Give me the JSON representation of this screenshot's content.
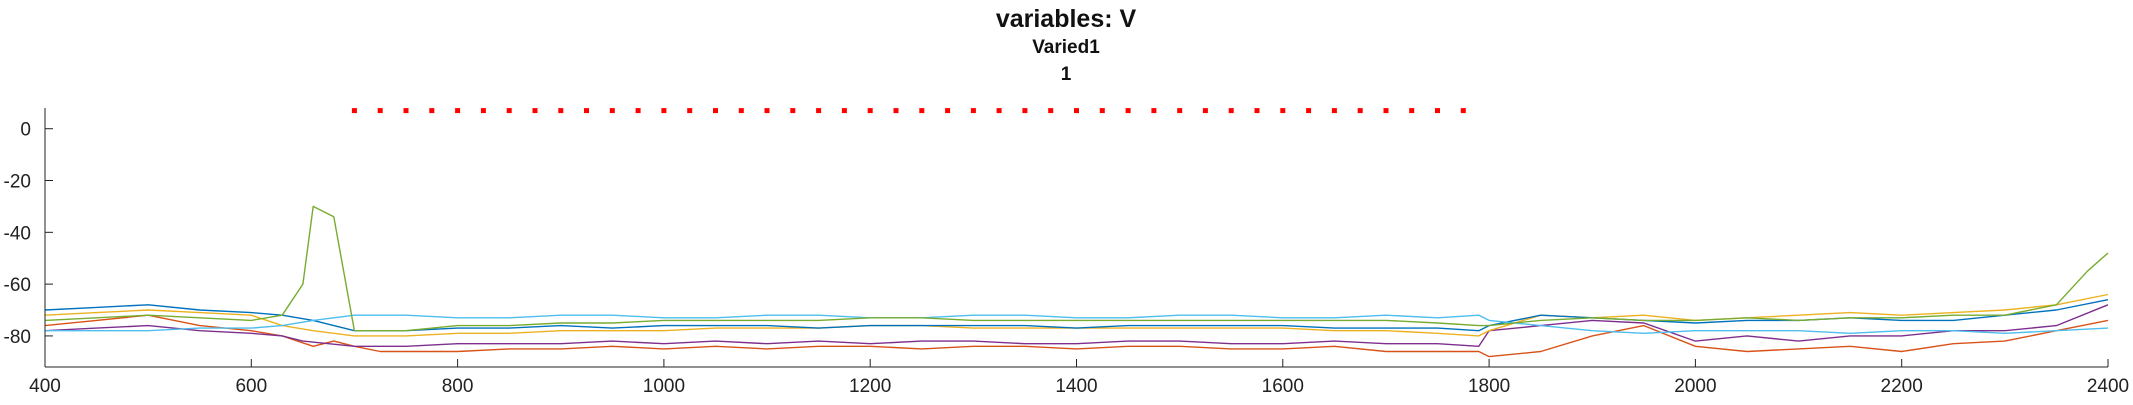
{
  "chart_data": {
    "type": "line",
    "title": "variables: V",
    "subtitle": "Varied1",
    "subtitle2": "1",
    "xlim": [
      400,
      2400
    ],
    "ylim": [
      -92,
      8
    ],
    "x_ticks": [
      400,
      600,
      800,
      1000,
      1200,
      1400,
      1600,
      1800,
      2000,
      2200,
      2400
    ],
    "y_ticks": [
      0,
      -20,
      -40,
      -60,
      -80
    ],
    "grid": false,
    "stimulus_markers": {
      "color": "#ff0000",
      "y": 7,
      "x": [
        700,
        725,
        750,
        775,
        800,
        825,
        850,
        875,
        900,
        925,
        950,
        975,
        1000,
        1025,
        1050,
        1075,
        1100,
        1125,
        1150,
        1175,
        1200,
        1225,
        1250,
        1275,
        1300,
        1325,
        1350,
        1375,
        1400,
        1425,
        1450,
        1475,
        1500,
        1525,
        1550,
        1575,
        1600,
        1625,
        1650,
        1675,
        1700,
        1725,
        1750,
        1775
      ]
    },
    "series": [
      {
        "color": "#d95319",
        "x": [
          400,
          450,
          500,
          550,
          600,
          630,
          660,
          680,
          700,
          725,
          750,
          800,
          850,
          900,
          950,
          1000,
          1050,
          1100,
          1150,
          1200,
          1250,
          1300,
          1350,
          1400,
          1450,
          1500,
          1550,
          1600,
          1650,
          1700,
          1750,
          1790,
          1800,
          1850,
          1900,
          1950,
          2000,
          2050,
          2100,
          2150,
          2200,
          2250,
          2300,
          2350,
          2400
        ],
        "y": [
          -76,
          -74,
          -72,
          -76,
          -78,
          -80,
          -84,
          -82,
          -84,
          -86,
          -86,
          -86,
          -85,
          -85,
          -84,
          -85,
          -84,
          -85,
          -84,
          -84,
          -85,
          -84,
          -84,
          -85,
          -84,
          -84,
          -85,
          -85,
          -84,
          -86,
          -86,
          -86,
          -88,
          -86,
          -80,
          -76,
          -84,
          -86,
          -85,
          -84,
          -86,
          -83,
          -82,
          -78,
          -74
        ]
      },
      {
        "color": "#7e2f8e",
        "x": [
          400,
          450,
          500,
          550,
          600,
          630,
          650,
          700,
          750,
          800,
          850,
          900,
          950,
          1000,
          1050,
          1100,
          1150,
          1200,
          1250,
          1300,
          1350,
          1400,
          1450,
          1500,
          1550,
          1600,
          1650,
          1700,
          1750,
          1790,
          1800,
          1850,
          1900,
          1950,
          2000,
          2050,
          2100,
          2150,
          2200,
          2250,
          2300,
          2350,
          2400
        ],
        "y": [
          -78,
          -77,
          -76,
          -78,
          -79,
          -80,
          -82,
          -84,
          -84,
          -83,
          -83,
          -83,
          -82,
          -83,
          -82,
          -83,
          -82,
          -83,
          -82,
          -82,
          -83,
          -83,
          -82,
          -82,
          -83,
          -83,
          -82,
          -83,
          -83,
          -84,
          -78,
          -76,
          -74,
          -75,
          -82,
          -80,
          -82,
          -80,
          -80,
          -78,
          -78,
          -76,
          -68
        ]
      },
      {
        "color": "#edb120",
        "x": [
          400,
          450,
          500,
          550,
          600,
          630,
          660,
          700,
          750,
          800,
          850,
          900,
          950,
          1000,
          1050,
          1100,
          1150,
          1200,
          1250,
          1300,
          1350,
          1400,
          1450,
          1500,
          1550,
          1600,
          1650,
          1700,
          1750,
          1790,
          1800,
          1850,
          1900,
          1950,
          2000,
          2050,
          2100,
          2150,
          2200,
          2250,
          2300,
          2350,
          2400
        ],
        "y": [
          -72,
          -71,
          -70,
          -71,
          -72,
          -76,
          -78,
          -80,
          -80,
          -79,
          -79,
          -78,
          -78,
          -78,
          -77,
          -77,
          -77,
          -76,
          -76,
          -77,
          -77,
          -77,
          -77,
          -77,
          -77,
          -77,
          -78,
          -78,
          -79,
          -80,
          -78,
          -72,
          -73,
          -72,
          -74,
          -73,
          -72,
          -71,
          -72,
          -71,
          -70,
          -68,
          -64
        ]
      },
      {
        "color": "#0072bd",
        "x": [
          400,
          450,
          500,
          550,
          600,
          630,
          660,
          700,
          750,
          800,
          850,
          900,
          950,
          1000,
          1050,
          1100,
          1150,
          1200,
          1250,
          1300,
          1350,
          1400,
          1450,
          1500,
          1550,
          1600,
          1650,
          1700,
          1750,
          1790,
          1800,
          1850,
          1900,
          1950,
          2000,
          2050,
          2100,
          2150,
          2200,
          2250,
          2300,
          2350,
          2400
        ],
        "y": [
          -70,
          -69,
          -68,
          -70,
          -71,
          -72,
          -74,
          -78,
          -78,
          -77,
          -77,
          -76,
          -77,
          -76,
          -76,
          -76,
          -77,
          -76,
          -76,
          -76,
          -76,
          -77,
          -76,
          -76,
          -76,
          -76,
          -77,
          -77,
          -77,
          -78,
          -76,
          -72,
          -73,
          -74,
          -75,
          -74,
          -74,
          -73,
          -74,
          -74,
          -72,
          -70,
          -66
        ]
      },
      {
        "color": "#4dbeee",
        "x": [
          400,
          450,
          500,
          550,
          600,
          630,
          660,
          700,
          750,
          800,
          850,
          900,
          950,
          1000,
          1050,
          1100,
          1150,
          1200,
          1250,
          1300,
          1350,
          1400,
          1450,
          1500,
          1550,
          1600,
          1650,
          1700,
          1750,
          1790,
          1800,
          1850,
          1900,
          1950,
          2000,
          2050,
          2100,
          2150,
          2200,
          2250,
          2300,
          2350,
          2400
        ],
        "y": [
          -78,
          -78,
          -78,
          -77,
          -77,
          -76,
          -74,
          -72,
          -72,
          -73,
          -73,
          -72,
          -72,
          -73,
          -73,
          -72,
          -72,
          -73,
          -73,
          -72,
          -72,
          -73,
          -73,
          -72,
          -72,
          -73,
          -73,
          -72,
          -73,
          -72,
          -74,
          -76,
          -78,
          -79,
          -78,
          -78,
          -78,
          -79,
          -78,
          -78,
          -79,
          -78,
          -77
        ]
      },
      {
        "color": "#77ac30",
        "x": [
          400,
          450,
          500,
          550,
          600,
          630,
          650,
          660,
          680,
          700,
          750,
          800,
          850,
          900,
          950,
          1000,
          1050,
          1100,
          1150,
          1200,
          1250,
          1300,
          1350,
          1400,
          1450,
          1500,
          1550,
          1600,
          1650,
          1700,
          1750,
          1790,
          1800,
          1850,
          1900,
          1950,
          2000,
          2050,
          2100,
          2150,
          2200,
          2250,
          2300,
          2350,
          2380,
          2400
        ],
        "y": [
          -74,
          -73,
          -72,
          -73,
          -74,
          -72,
          -60,
          -30,
          -34,
          -78,
          -78,
          -76,
          -76,
          -75,
          -75,
          -74,
          -74,
          -74,
          -74,
          -73,
          -73,
          -74,
          -74,
          -74,
          -74,
          -74,
          -74,
          -74,
          -74,
          -74,
          -75,
          -76,
          -76,
          -74,
          -73,
          -74,
          -74,
          -73,
          -74,
          -73,
          -73,
          -72,
          -72,
          -68,
          -55,
          -48
        ]
      }
    ]
  }
}
